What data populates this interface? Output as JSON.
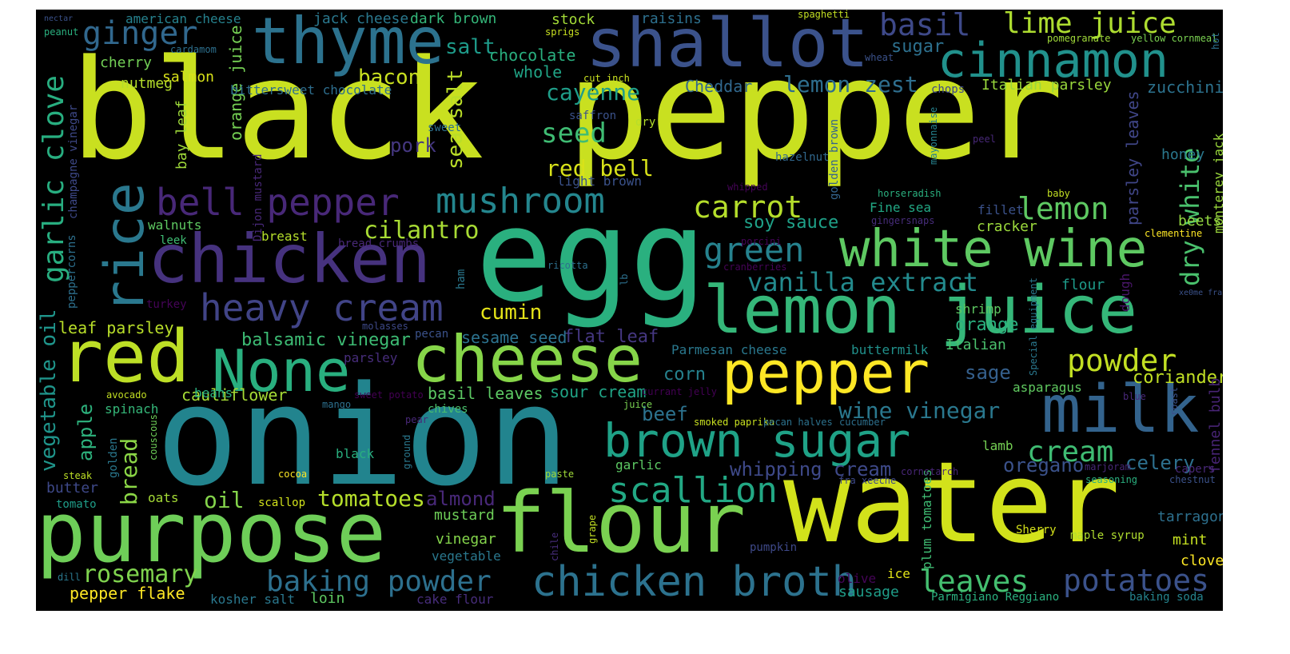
{
  "words": [
    {
      "text": "black pepper",
      "color": "#c9e020"
    },
    {
      "text": "onion",
      "color": "#22848e"
    },
    {
      "text": "water",
      "color": "#d2e21b"
    },
    {
      "text": "egg",
      "color": "#2ab07f"
    },
    {
      "text": "flour",
      "color": "#7ad151"
    },
    {
      "text": "purpose",
      "color": "#6ece58"
    },
    {
      "text": "chicken",
      "color": "#46327e"
    },
    {
      "text": "shallot",
      "color": "#3b528b"
    },
    {
      "text": "thyme",
      "color": "#2c728e"
    },
    {
      "text": "lemon juice",
      "color": "#35b779"
    },
    {
      "text": "cheese",
      "color": "#86d549"
    },
    {
      "text": "red",
      "color": "#bddf26"
    },
    {
      "text": "None",
      "color": "#29af7f"
    },
    {
      "text": "milk",
      "color": "#33638d"
    },
    {
      "text": "pepper",
      "color": "#fde725"
    },
    {
      "text": "brown sugar",
      "color": "#1fa287"
    },
    {
      "text": "white wine",
      "color": "#5ec962"
    },
    {
      "text": "cinnamon",
      "color": "#21918c"
    },
    {
      "text": "rice",
      "color": "#2a788e"
    },
    {
      "text": "chicken broth",
      "color": "#2c728e"
    },
    {
      "text": "scallion",
      "color": "#22a884"
    },
    {
      "text": "mushroom",
      "color": "#24868e"
    },
    {
      "text": "bell pepper",
      "color": "#482878"
    },
    {
      "text": "heavy cream",
      "color": "#414487"
    },
    {
      "text": "garlic clove",
      "color": "#28ae80"
    },
    {
      "text": "ginger",
      "color": "#31688e"
    },
    {
      "text": "basil",
      "color": "#3e4989"
    },
    {
      "text": "lime juice",
      "color": "#addc30"
    },
    {
      "text": "carrot",
      "color": "#b5de2b"
    },
    {
      "text": "green",
      "color": "#26828e"
    },
    {
      "text": "lemon",
      "color": "#5ec962"
    },
    {
      "text": "vanilla extract",
      "color": "#238a8d"
    },
    {
      "text": "potatoes",
      "color": "#3b528b"
    },
    {
      "text": "leaves",
      "color": "#44bf70"
    },
    {
      "text": "baking powder",
      "color": "#2d708e"
    },
    {
      "text": "cream",
      "color": "#3fbc73"
    },
    {
      "text": "powder",
      "color": "#c2df23"
    },
    {
      "text": "rosemary",
      "color": "#7fd34e"
    },
    {
      "text": "seed",
      "color": "#3fbc73"
    },
    {
      "text": "cayenne",
      "color": "#1f9e89"
    },
    {
      "text": "dry white",
      "color": "#4ac16d"
    },
    {
      "text": "wine vinegar",
      "color": "#2a788e"
    },
    {
      "text": "cilantro",
      "color": "#a8db34"
    },
    {
      "text": "red bell",
      "color": "#d8e219"
    },
    {
      "text": "sea salt",
      "color": "#bade28"
    },
    {
      "text": "lemon zest",
      "color": "#2e6e8e"
    },
    {
      "text": "salt",
      "color": "#1e9b8a"
    },
    {
      "text": "bacon",
      "color": "#c8e020"
    },
    {
      "text": "tomatoes",
      "color": "#b5de2b"
    },
    {
      "text": "oil",
      "color": "#84d44b"
    },
    {
      "text": "cumin",
      "color": "#e5e419"
    },
    {
      "text": "bread",
      "color": "#8bd646"
    },
    {
      "text": "vegetable oil",
      "color": "#1f958b"
    },
    {
      "text": "apple",
      "color": "#2db27d"
    },
    {
      "text": "sugar",
      "color": "#2d708e"
    },
    {
      "text": "sage",
      "color": "#35608d"
    },
    {
      "text": "orange",
      "color": "#2ab07f"
    },
    {
      "text": "celery",
      "color": "#2d708e"
    },
    {
      "text": "balsamic vinegar",
      "color": "#3dbc74"
    },
    {
      "text": "almond",
      "color": "#482878"
    },
    {
      "text": "pork",
      "color": "#453781"
    },
    {
      "text": "soy sauce",
      "color": "#1fa188"
    },
    {
      "text": "oregano",
      "color": "#3b528b"
    },
    {
      "text": "whipping cream",
      "color": "#3e4989"
    },
    {
      "text": "chocolate",
      "color": "#29af7f"
    },
    {
      "text": "whole",
      "color": "#20a486"
    },
    {
      "text": "coriander",
      "color": "#c0df25"
    },
    {
      "text": "cauliflower",
      "color": "#a5db36"
    },
    {
      "text": "leaf parsley",
      "color": "#b8de29"
    },
    {
      "text": "beef",
      "color": "#2c728e"
    },
    {
      "text": "sour cream",
      "color": "#20a486"
    },
    {
      "text": "basil leaves",
      "color": "#5cc863"
    },
    {
      "text": "corn",
      "color": "#26828e"
    },
    {
      "text": "flat leaf",
      "color": "#453781"
    },
    {
      "text": "sesame seed",
      "color": "#2c728e"
    },
    {
      "text": "orange juice",
      "color": "#75d054"
    },
    {
      "text": "bay leaf",
      "color": "#9fda3a"
    },
    {
      "text": "Cheddar",
      "color": "#31688e"
    },
    {
      "text": "nutmeg",
      "color": "#b5de2b"
    },
    {
      "text": "salmon",
      "color": "#d8e219"
    },
    {
      "text": "bittersweet chocolate",
      "color": "#2e6e8e"
    },
    {
      "text": "cherry",
      "color": "#73d056"
    },
    {
      "text": "american cheese",
      "color": "#26828e"
    },
    {
      "text": "jack cheese",
      "color": "#2a788e"
    },
    {
      "text": "dark brown",
      "color": "#34b679"
    },
    {
      "text": "stock",
      "color": "#a2da37"
    },
    {
      "text": "raisins",
      "color": "#2d708e"
    },
    {
      "text": "Italian parsley",
      "color": "#99d83c"
    },
    {
      "text": "zucchini",
      "color": "#2c728e"
    },
    {
      "text": "parsley leaves",
      "color": "#404688"
    },
    {
      "text": "honey",
      "color": "#2a788e"
    },
    {
      "text": "monterey jack",
      "color": "#9bd93c"
    },
    {
      "text": "beets",
      "color": "#93d741"
    },
    {
      "text": "cracker",
      "color": "#9bd93c"
    },
    {
      "text": "fillet",
      "color": "#3b528b"
    },
    {
      "text": "Fine sea",
      "color": "#22a884"
    },
    {
      "text": "flour",
      "color": "#1e9b8a"
    },
    {
      "text": "dough",
      "color": "#481668"
    },
    {
      "text": "shrimp",
      "color": "#5ec962"
    },
    {
      "text": "Italian",
      "color": "#4ac16d"
    },
    {
      "text": "buttermilk",
      "color": "#21918c"
    },
    {
      "text": "Parmesan cheese",
      "color": "#2a788e"
    },
    {
      "text": "asparagus",
      "color": "#60ca60"
    },
    {
      "text": "fennel bulb",
      "color": "#482475"
    },
    {
      "text": "lamb",
      "color": "#75d054"
    },
    {
      "text": "capers",
      "color": "#482878"
    },
    {
      "text": "tarragon",
      "color": "#2d708e"
    },
    {
      "text": "mint",
      "color": "#c5e021"
    },
    {
      "text": "clove",
      "color": "#fde725"
    },
    {
      "text": "maple syrup",
      "color": "#b0dd2f"
    },
    {
      "text": "Sherry",
      "color": "#d5e21a"
    },
    {
      "text": "baking soda",
      "color": "#25848e"
    },
    {
      "text": "Parmigiano Reggiano",
      "color": "#2ab07f"
    },
    {
      "text": "sausage",
      "color": "#1f9e89"
    },
    {
      "text": "ice",
      "color": "#e2e418"
    },
    {
      "text": "olive",
      "color": "#450457"
    },
    {
      "text": "pumpkin",
      "color": "#3e4989"
    },
    {
      "text": "plum tomatoes",
      "color": "#3fbc73"
    },
    {
      "text": "mustard",
      "color": "#6ece58"
    },
    {
      "text": "vinegar",
      "color": "#84d44b"
    },
    {
      "text": "vegetable",
      "color": "#2a788e"
    },
    {
      "text": "garlic",
      "color": "#5cc863"
    },
    {
      "text": "black",
      "color": "#29af7f"
    },
    {
      "text": "kosher salt",
      "color": "#2a788e"
    },
    {
      "text": "loin",
      "color": "#5ec962"
    },
    {
      "text": "cake flour",
      "color": "#472d7b"
    },
    {
      "text": "pepper flake",
      "color": "#fde725"
    },
    {
      "text": "butter",
      "color": "#3e4989"
    },
    {
      "text": "tomato",
      "color": "#1f9e89"
    },
    {
      "text": "oats",
      "color": "#a5db36"
    },
    {
      "text": "scallop",
      "color": "#d2e21b"
    },
    {
      "text": "spinach",
      "color": "#35b779"
    },
    {
      "text": "beans",
      "color": "#2ab07f"
    },
    {
      "text": "couscous",
      "color": "#6ece58"
    },
    {
      "text": "golden",
      "color": "#2a788e"
    },
    {
      "text": "steak",
      "color": "#bddf26"
    },
    {
      "text": "dill",
      "color": "#2a788e"
    },
    {
      "text": "cocoa",
      "color": "#fde725"
    },
    {
      "text": "paste",
      "color": "#a0da39"
    },
    {
      "text": "chile",
      "color": "#472d7b"
    },
    {
      "text": "grape",
      "color": "#c2df23"
    },
    {
      "text": "smoked paprika",
      "color": "#c8e020"
    },
    {
      "text": "pecan halves",
      "color": "#2c728e"
    },
    {
      "text": "cucumber",
      "color": "#2d708e"
    },
    {
      "text": "cornstarch",
      "color": "#482677"
    },
    {
      "text": "fra xeeche",
      "color": "#3e4989"
    },
    {
      "text": "marjoram",
      "color": "#482878"
    },
    {
      "text": "seasoning",
      "color": "#2ab07f"
    },
    {
      "text": "chestnut",
      "color": "#3b528b"
    },
    {
      "text": "roast",
      "color": "#3b528b"
    },
    {
      "text": "blue",
      "color": "#482878"
    },
    {
      "text": "currant jelly",
      "color": "#440154"
    },
    {
      "text": "juice",
      "color": "#7ad151"
    },
    {
      "text": "mango",
      "color": "#2d708e"
    },
    {
      "text": "chives",
      "color": "#4ac16d"
    },
    {
      "text": "pear",
      "color": "#482878"
    },
    {
      "text": "sweet potato",
      "color": "#440154"
    },
    {
      "text": "avocado",
      "color": "#c2df23"
    },
    {
      "text": "ground",
      "color": "#2a788e"
    },
    {
      "text": "Special equipment",
      "color": "#2a788e"
    },
    {
      "text": "xe0me fra",
      "color": "#3b528b"
    },
    {
      "text": "clementine",
      "color": "#fde725"
    },
    {
      "text": "baby",
      "color": "#c2df23"
    },
    {
      "text": "gingersnaps",
      "color": "#472d7b"
    },
    {
      "text": "horseradish",
      "color": "#2ab07f"
    },
    {
      "text": "whipped",
      "color": "#450457"
    },
    {
      "text": "hazelnut",
      "color": "#31688e"
    },
    {
      "text": "peel",
      "color": "#482878"
    },
    {
      "text": "mayonnaise",
      "color": "#26828e"
    },
    {
      "text": "golden brown",
      "color": "#33638d"
    },
    {
      "text": "light brown",
      "color": "#3b528b"
    },
    {
      "text": "sweet",
      "color": "#2d708e"
    },
    {
      "text": "dry",
      "color": "#b5de2b"
    },
    {
      "text": "saffron",
      "color": "#3b528b"
    },
    {
      "text": "cut inch",
      "color": "#c8e020"
    },
    {
      "text": "chops",
      "color": "#3e4989"
    },
    {
      "text": "wheat",
      "color": "#3b528b"
    },
    {
      "text": "pomegranate",
      "color": "#a0da39"
    },
    {
      "text": "yellow cornmeal",
      "color": "#7ad151"
    },
    {
      "text": "hot",
      "color": "#2d708e"
    },
    {
      "text": "spaghetti",
      "color": "#c2df23"
    },
    {
      "text": "sprigs",
      "color": "#c8e020"
    },
    {
      "text": "nectar",
      "color": "#3b528b"
    },
    {
      "text": "peanut",
      "color": "#2ab07f"
    },
    {
      "text": "cardamom",
      "color": "#2d708e"
    },
    {
      "text": "champagne vinegar",
      "color": "#3e4989"
    },
    {
      "text": "peppercorns",
      "color": "#2d708e"
    },
    {
      "text": "walnuts",
      "color": "#5ec962"
    },
    {
      "text": "leek",
      "color": "#3fbc73"
    },
    {
      "text": "breast",
      "color": "#b5de2b"
    },
    {
      "text": "bread crumbs",
      "color": "#482878"
    },
    {
      "text": "Dijon mustard",
      "color": "#482878"
    },
    {
      "text": "turkey",
      "color": "#450457"
    },
    {
      "text": "ham",
      "color": "#2a788e"
    },
    {
      "text": "lb",
      "color": "#2d708e"
    },
    {
      "text": "ricotta",
      "color": "#2d708e"
    },
    {
      "text": "cranberries",
      "color": "#450457"
    },
    {
      "text": "molasses",
      "color": "#3e4989"
    },
    {
      "text": "pecan",
      "color": "#3b528b"
    },
    {
      "text": "parsley",
      "color": "#472d7b"
    },
    {
      "text": "porcini",
      "color": "#450457"
    }
  ]
}
